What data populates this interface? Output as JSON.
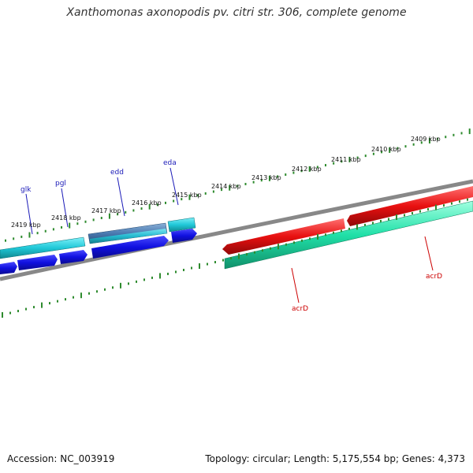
{
  "title": "Xanthomonas axonopodis pv. citri str. 306, complete genome",
  "footer": {
    "accession": "Accession: NC_003919",
    "summary": "Topology: circular; Length: 5,175,554 bp; Genes: 4,373"
  },
  "colors": {
    "backbone": "#888888",
    "ticks": "#2e8b2e",
    "blue_gene": "#1a1ae8",
    "cyan_gene": "#20c8d8",
    "steel_gene": "#4a7ab0",
    "red_gene": "#e81010",
    "aqua_gene": "#20e0a8",
    "label_blue": "#1a1ab8",
    "label_red": "#cc0000"
  },
  "scale_labels": [
    "2419 kbp",
    "2418 kbp",
    "2417 kbp",
    "2416 kbp",
    "2415 kbp",
    "2414 kbp",
    "2413 kbp",
    "2412 kbp",
    "2411 kbp",
    "2410 kbp",
    "2409 kbp"
  ],
  "gene_labels": [
    {
      "text": "glk",
      "color": "#1a1ab8"
    },
    {
      "text": "pgl",
      "color": "#1a1ab8"
    },
    {
      "text": "edd",
      "color": "#1a1ab8"
    },
    {
      "text": "eda",
      "color": "#1a1ab8"
    },
    {
      "text": "acrD",
      "color": "#cc0000"
    },
    {
      "text": "acrD",
      "color": "#cc0000"
    }
  ]
}
